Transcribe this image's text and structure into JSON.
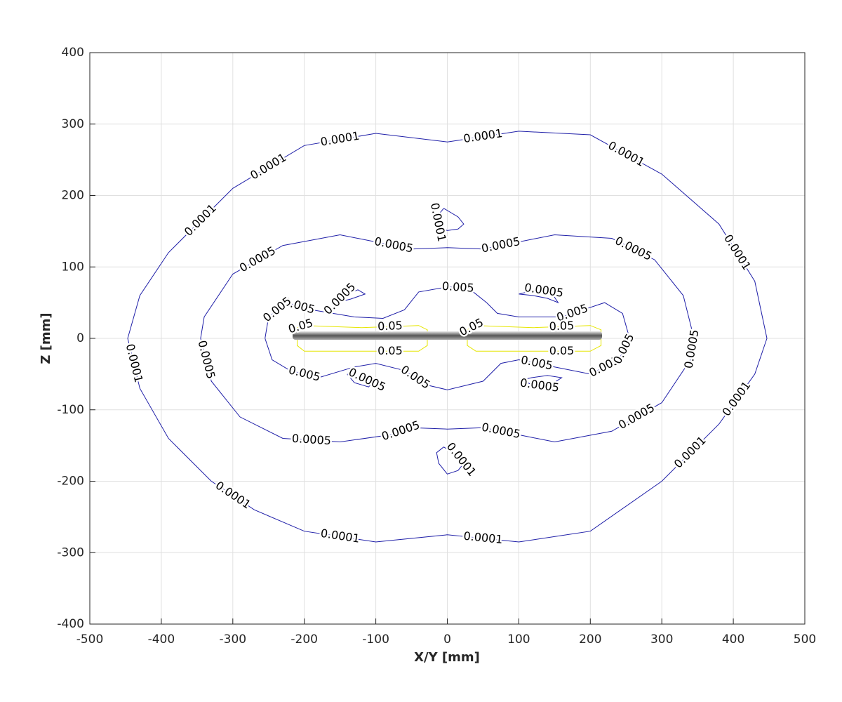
{
  "chart_data": {
    "type": "contour",
    "xlabel": "X/Y [mm]",
    "ylabel": "Z [mm]",
    "xlim": [
      -500,
      500
    ],
    "ylim": [
      -400,
      400
    ],
    "xticks": [
      -500,
      -400,
      -300,
      -200,
      -100,
      0,
      100,
      200,
      300,
      400,
      500
    ],
    "yticks": [
      -400,
      -300,
      -200,
      -100,
      0,
      100,
      200,
      300,
      400
    ],
    "grid": true,
    "series": [
      {
        "level": 0.0001,
        "color": "#1f1fa8",
        "x": [
          -447,
          -430,
          -390,
          -330,
          -270,
          -200,
          -100,
          0,
          100,
          200,
          300,
          380,
          430,
          447,
          430,
          380,
          300,
          200,
          100,
          0,
          -100,
          -200,
          -300,
          -390,
          -430,
          -447
        ],
        "y": [
          0,
          -70,
          -140,
          -200,
          -240,
          -270,
          -285,
          -275,
          -285,
          -270,
          -200,
          -120,
          -50,
          0,
          80,
          160,
          230,
          285,
          290,
          275,
          287,
          270,
          210,
          120,
          60,
          0
        ]
      },
      {
        "level": 0.0001,
        "color": "#1f1fa8",
        "x": [
          -5,
          -15,
          -12,
          0,
          15,
          23,
          15,
          -5
        ],
        "y": [
          182,
          170,
          155,
          151,
          153,
          160,
          170,
          182
        ]
      },
      {
        "level": 0.0001,
        "color": "#1f1fa8",
        "x": [
          -5,
          -15,
          -12,
          0,
          15,
          23,
          15,
          -5
        ],
        "y": [
          -152,
          -160,
          -175,
          -190,
          -185,
          -175,
          -165,
          -152
        ]
      },
      {
        "level": 0.0005,
        "color": "#1f1fa8",
        "x": [
          -345,
          -330,
          -290,
          -230,
          -150,
          -80,
          -50,
          0,
          50,
          100,
          150,
          230,
          300,
          340,
          345,
          330,
          290,
          230,
          150,
          100,
          50,
          0,
          -50,
          -100,
          -150,
          -230,
          -300,
          -340,
          -345
        ],
        "y": [
          0,
          -60,
          -110,
          -140,
          -145,
          -135,
          -125,
          -127,
          -125,
          -135,
          -145,
          -130,
          -90,
          -30,
          0,
          60,
          110,
          140,
          145,
          135,
          125,
          127,
          125,
          135,
          145,
          130,
          90,
          30,
          0
        ]
      },
      {
        "level": 0.0005,
        "color": "#1f1fa8",
        "x": [
          -155,
          -145,
          -125,
          -115,
          -135,
          -155
        ],
        "y": [
          50,
          60,
          68,
          62,
          55,
          50
        ]
      },
      {
        "level": 0.0005,
        "color": "#1f1fa8",
        "x": [
          -140,
          -120,
          -105,
          -110,
          -130,
          -140
        ],
        "y": [
          -50,
          -55,
          -62,
          -68,
          -62,
          -50
        ]
      },
      {
        "level": 0.0005,
        "color": "#1f1fa8",
        "x": [
          100,
          125,
          145,
          155,
          140,
          120,
          100
        ],
        "y": [
          62,
          68,
          65,
          50,
          56,
          60,
          62
        ]
      },
      {
        "level": 0.0005,
        "color": "#1f1fa8",
        "x": [
          105,
          118,
          140,
          160,
          140,
          118,
          105
        ],
        "y": [
          -58,
          -65,
          -68,
          -55,
          -52,
          -55,
          -58
        ]
      },
      {
        "level": 0.005,
        "color": "#1f1fa8",
        "x": [
          -255,
          -245,
          -220,
          -180,
          -130,
          -100,
          -60,
          -30,
          0,
          50,
          75,
          100,
          150,
          200,
          240,
          255,
          245,
          220,
          190,
          160,
          100,
          70,
          55,
          30,
          0,
          -40,
          -60,
          -90,
          -130,
          -190,
          -225,
          -250,
          -255
        ],
        "y": [
          0,
          -30,
          -45,
          -55,
          -40,
          -35,
          -45,
          -65,
          -72,
          -60,
          -35,
          -30,
          -40,
          -50,
          -30,
          0,
          35,
          50,
          40,
          30,
          30,
          35,
          50,
          70,
          72,
          65,
          40,
          28,
          30,
          40,
          50,
          30,
          0
        ]
      },
      {
        "level": 0.05,
        "color": "#e6e600",
        "x": [
          -210,
          -210,
          -200,
          -120,
          -40,
          -28,
          -28,
          -40,
          -120,
          -200,
          -210
        ],
        "y": [
          15,
          -10,
          -18,
          -18,
          -18,
          -10,
          12,
          18,
          15,
          18,
          15
        ]
      },
      {
        "level": 0.05,
        "color": "#e6e600",
        "x": [
          28,
          28,
          40,
          120,
          200,
          215,
          215,
          200,
          120,
          40,
          28
        ],
        "y": [
          12,
          -10,
          -18,
          -18,
          -18,
          -10,
          12,
          18,
          15,
          18,
          12
        ]
      }
    ]
  }
}
